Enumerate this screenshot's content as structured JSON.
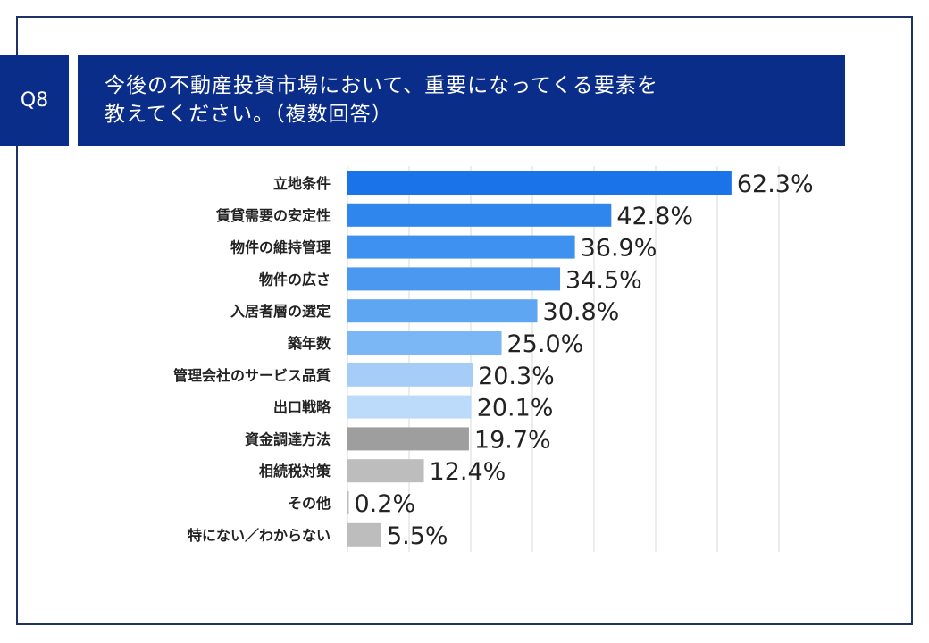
{
  "question": {
    "number": "Q8",
    "line1": "今後の不動産投資市場において、重要になってくる要素を",
    "line2": "教えてください。（複数回答）"
  },
  "chart_data": {
    "type": "bar",
    "orientation": "horizontal",
    "categories": [
      "立地条件",
      "賃貸需要の安定性",
      "物件の維持管理",
      "物件の広さ",
      "入居者層の選定",
      "築年数",
      "管理会社のサービス品質",
      "出口戦略",
      "資金調達方法",
      "相続税対策",
      "その他",
      "特にない／わからない"
    ],
    "values": [
      62.3,
      42.8,
      36.9,
      34.5,
      30.8,
      25.0,
      20.3,
      20.1,
      19.7,
      12.4,
      0.2,
      5.5
    ],
    "labels": [
      "62.3%",
      "42.8%",
      "36.9%",
      "34.5%",
      "30.8%",
      "25.0%",
      "20.3%",
      "20.1%",
      "19.7%",
      "12.4%",
      "0.2%",
      "5.5%"
    ],
    "colors": [
      "#1a73e8",
      "#2f86ec",
      "#3f91ef",
      "#4a98f0",
      "#5ea6f2",
      "#7bb6f5",
      "#a6cdf8",
      "#bcdbfa",
      "#9e9e9e",
      "#bdbdbd",
      "#bdbdbd",
      "#bdbdbd"
    ],
    "xlim": [
      0,
      70
    ],
    "grid": true
  }
}
